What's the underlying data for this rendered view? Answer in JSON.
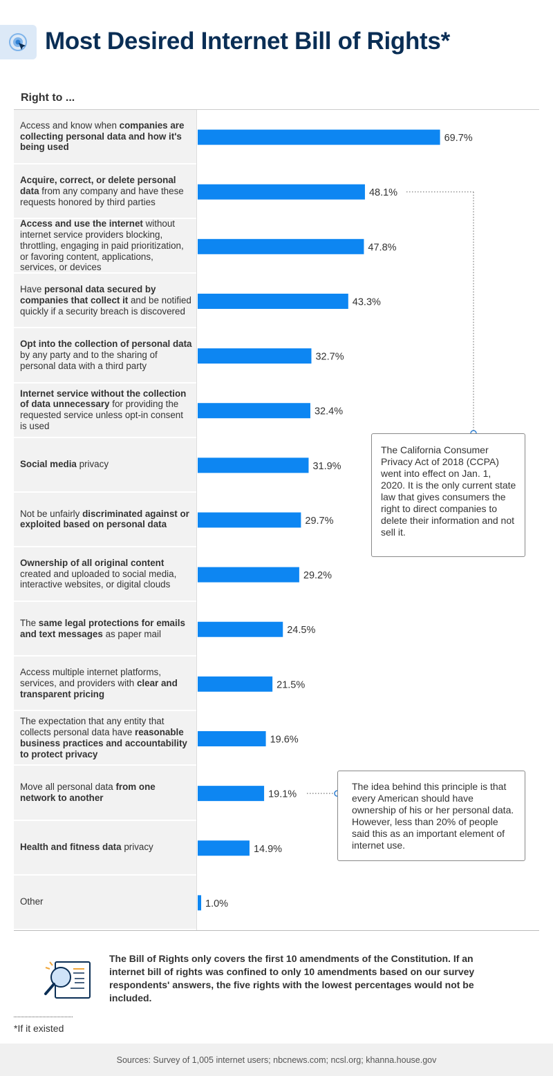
{
  "header": {
    "title": "Most Desired Internet Bill of Rights*",
    "icon": "target-cursor-icon"
  },
  "column_header": "Right to ...",
  "rows": [
    {
      "parts": [
        {
          "t": "Access and know when ",
          "b": false
        },
        {
          "t": "companies are collecting personal data and how it's being used",
          "b": true
        }
      ]
    },
    {
      "parts": [
        {
          "t": "Acquire, correct, or delete personal data",
          "b": true
        },
        {
          "t": " from any company and have these requests honored by third parties",
          "b": false
        }
      ]
    },
    {
      "parts": [
        {
          "t": "Access and use the internet",
          "b": true
        },
        {
          "t": " without internet service providers blocking, throttling, engaging in paid prioritization, or favoring content, applications, services, or devices",
          "b": false
        }
      ]
    },
    {
      "parts": [
        {
          "t": "Have ",
          "b": false
        },
        {
          "t": "personal data secured by companies that collect it",
          "b": true
        },
        {
          "t": " and be notified quickly if a security breach is discovered",
          "b": false
        }
      ]
    },
    {
      "parts": [
        {
          "t": "Opt into the collection of personal data",
          "b": true
        },
        {
          "t": " by any party and to the sharing of personal data with a third party",
          "b": false
        }
      ]
    },
    {
      "parts": [
        {
          "t": "Internet service without the collection of data unnecessary",
          "b": true
        },
        {
          "t": " for providing the requested service unless opt-in consent is used",
          "b": false
        }
      ]
    },
    {
      "parts": [
        {
          "t": "Social media",
          "b": true
        },
        {
          "t": " privacy",
          "b": false
        }
      ]
    },
    {
      "parts": [
        {
          "t": "Not be unfairly ",
          "b": false
        },
        {
          "t": "discriminated against or exploited based on personal data",
          "b": true
        }
      ]
    },
    {
      "parts": [
        {
          "t": "Ownership of all original content",
          "b": true
        },
        {
          "t": " created and uploaded to social media, interactive websites, or digital clouds",
          "b": false
        }
      ]
    },
    {
      "parts": [
        {
          "t": "The ",
          "b": false
        },
        {
          "t": "same legal protections for emails and text messages",
          "b": true
        },
        {
          "t": " as paper mail",
          "b": false
        }
      ]
    },
    {
      "parts": [
        {
          "t": "Access multiple internet platforms, services, and providers with ",
          "b": false
        },
        {
          "t": "clear and transparent pricing",
          "b": true
        }
      ]
    },
    {
      "parts": [
        {
          "t": "The expectation that any entity that collects personal data have ",
          "b": false
        },
        {
          "t": "reasonable business practices and accountability to protect privacy",
          "b": true
        }
      ]
    },
    {
      "parts": [
        {
          "t": "Move all personal data ",
          "b": false
        },
        {
          "t": "from one network to another",
          "b": true
        }
      ]
    },
    {
      "parts": [
        {
          "t": "Health and fitness data",
          "b": true
        },
        {
          "t": " privacy",
          "b": false
        }
      ]
    },
    {
      "parts": [
        {
          "t": "Other",
          "b": false
        }
      ]
    }
  ],
  "chart_data": {
    "type": "bar",
    "orientation": "horizontal",
    "title": "Most Desired Internet Bill of Rights*",
    "categories": [
      "Access and know when companies are collecting personal data and how it's being used",
      "Acquire, correct, or delete personal data from any company and have these requests honored by third parties",
      "Access and use the internet without internet service providers blocking, throttling, engaging in paid prioritization, or favoring content, applications, services, or devices",
      "Have personal data secured by companies that collect it and be notified quickly if a security breach is discovered",
      "Opt into the collection of personal data by any party and to the sharing of personal data with a third party",
      "Internet service without the collection of data unnecessary for providing the requested service unless opt-in consent is used",
      "Social media privacy",
      "Not be unfairly discriminated against or exploited based on personal data",
      "Ownership of all original content created and uploaded to social media, interactive websites, or digital clouds",
      "The same legal protections for emails and text messages as paper mail",
      "Access multiple internet platforms, services, and providers with clear and transparent pricing",
      "The expectation that any entity that collects personal data have reasonable business practices and accountability to protect privacy",
      "Move all personal data from one network to another",
      "Health and fitness data privacy",
      "Other"
    ],
    "values": [
      69.7,
      48.1,
      47.8,
      43.3,
      32.7,
      32.4,
      31.9,
      29.7,
      29.2,
      24.5,
      21.5,
      19.6,
      19.1,
      14.9,
      1.0
    ],
    "value_labels": [
      "69.7%",
      "48.1%",
      "47.8%",
      "43.3%",
      "32.7%",
      "32.4%",
      "31.9%",
      "29.7%",
      "29.2%",
      "24.5%",
      "21.5%",
      "19.6%",
      "19.1%",
      "14.9%",
      "1.0%"
    ],
    "xlim": [
      0,
      100
    ],
    "bar_color": "#0d86f2",
    "grid": false,
    "legend": "none"
  },
  "callouts": [
    {
      "text": "The California Consumer Privacy Act of 2018 (CCPA) went into effect on Jan. 1, 2020. It is the only current state law that gives consumers the right to direct companies to delete their information and not sell it.",
      "row": 1
    },
    {
      "text": "The idea behind this principle is that every American should have ownership of his or her personal data. However, less than 20% of people said this as an important element of internet use.",
      "row": 12
    }
  ],
  "note": {
    "icon": "magnifier-document-icon",
    "text": "The Bill of Rights only covers the first 10 amendments of the Constitution. If an internet bill of rights was confined to only 10 amendments based on our survey respondents' answers, the five rights with the lowest percentages would not be included."
  },
  "footnote": "*If it existed",
  "sources": "Sources: Survey of 1,005 internet users; nbcnews.com; ncsl.org; khanna.house.gov",
  "colors": {
    "title": "#0a2e55",
    "bar": "#0d86f2",
    "label_bg": "#f2f2f2",
    "icon_bg": "#dce9f7"
  }
}
